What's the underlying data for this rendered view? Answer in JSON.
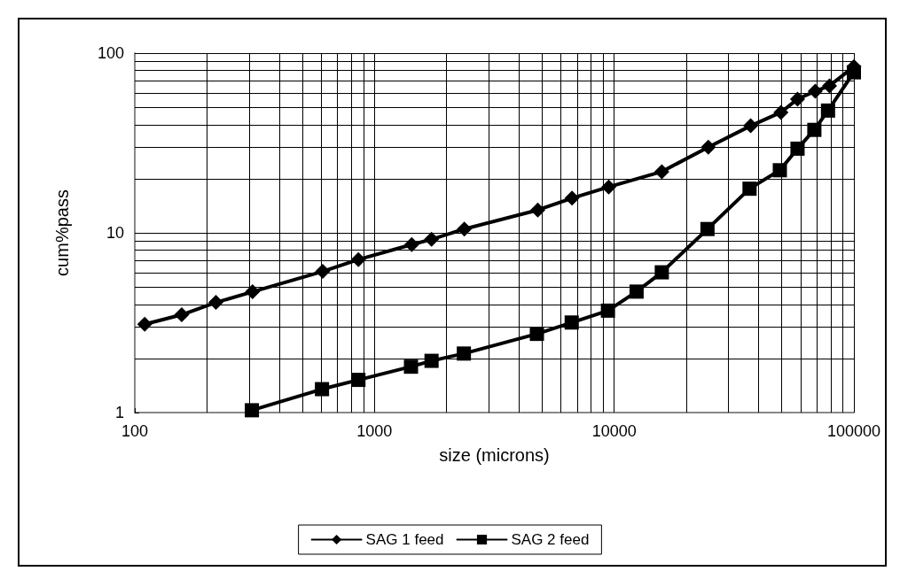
{
  "chart_data": {
    "type": "line",
    "xlabel": "size (microns)",
    "ylabel": "cum%pass",
    "log": "xy",
    "grid": true,
    "legend": "bottom",
    "line_style": "solid",
    "xlim": [
      100,
      100000
    ],
    "ylim": [
      1,
      100
    ],
    "xticks": [
      100,
      {
        "value": 200,
        "label": null
      },
      {
        "value": 300,
        "label": null
      },
      {
        "value": 400,
        "label": null
      },
      {
        "value": 500,
        "label": null
      },
      {
        "value": 600,
        "label": null
      },
      {
        "value": 700,
        "label": null
      },
      {
        "value": 800,
        "label": null
      },
      {
        "value": 900,
        "label": null
      },
      1000,
      {
        "value": 2000,
        "label": null
      },
      {
        "value": 3000,
        "label": null
      },
      {
        "value": 4000,
        "label": null
      },
      {
        "value": 5000,
        "label": null
      },
      {
        "value": 6000,
        "label": null
      },
      {
        "value": 7000,
        "label": null
      },
      {
        "value": 8000,
        "label": null
      },
      {
        "value": 9000,
        "label": null
      },
      10000,
      {
        "value": 20000,
        "label": null
      },
      {
        "value": 30000,
        "label": null
      },
      {
        "value": 40000,
        "label": null
      },
      {
        "value": 50000,
        "label": null
      },
      {
        "value": 60000,
        "label": null
      },
      {
        "value": 70000,
        "label": null
      },
      {
        "value": 80000,
        "label": null
      },
      {
        "value": 90000,
        "label": null
      },
      100000
    ],
    "yticks": [
      1,
      {
        "value": 2,
        "label": null
      },
      {
        "value": 3,
        "label": null
      },
      {
        "value": 4,
        "label": null
      },
      {
        "value": 5,
        "label": null
      },
      {
        "value": 6,
        "label": null
      },
      {
        "value": 7,
        "label": null
      },
      {
        "value": 8,
        "label": null
      },
      {
        "value": 9,
        "label": null
      },
      10,
      {
        "value": 20,
        "label": null
      },
      {
        "value": 30,
        "label": null
      },
      {
        "value": 40,
        "label": null
      },
      {
        "value": 50,
        "label": null
      },
      {
        "value": 60,
        "label": null
      },
      {
        "value": 70,
        "label": null
      },
      {
        "value": 80,
        "label": null
      },
      {
        "value": 90,
        "label": null
      },
      100
    ],
    "series": [
      {
        "name": "SAG 1 feed",
        "color": "#000000",
        "marker": "diamond",
        "x": [
          110,
          157,
          218,
          310,
          608,
          857,
          1430,
          1730,
          2370,
          4800,
          6670,
          9490,
          15800,
          24700,
          37100,
          49600,
          58200,
          69000,
          79100,
          100000
        ],
        "values": [
          3.1,
          3.5,
          4.1,
          4.7,
          6.1,
          7.1,
          8.6,
          9.2,
          10.5,
          13.4,
          15.6,
          18,
          21.9,
          30,
          39.4,
          46.8,
          55.5,
          61.4,
          65.8,
          84
        ]
      },
      {
        "name": "SAG 2 feed",
        "color": "#000000",
        "marker": "square",
        "x": [
          308,
          604,
          857,
          1420,
          1730,
          2360,
          4760,
          6650,
          9420,
          12400,
          15800,
          24500,
          36700,
          49100,
          58200,
          68400,
          78000,
          100000
        ],
        "values": [
          1.03,
          1.35,
          1.52,
          1.8,
          1.94,
          2.13,
          2.74,
          3.17,
          3.69,
          4.71,
          6.03,
          10.5,
          17.6,
          22.3,
          29.4,
          37.4,
          47.9,
          78.2
        ]
      }
    ]
  }
}
